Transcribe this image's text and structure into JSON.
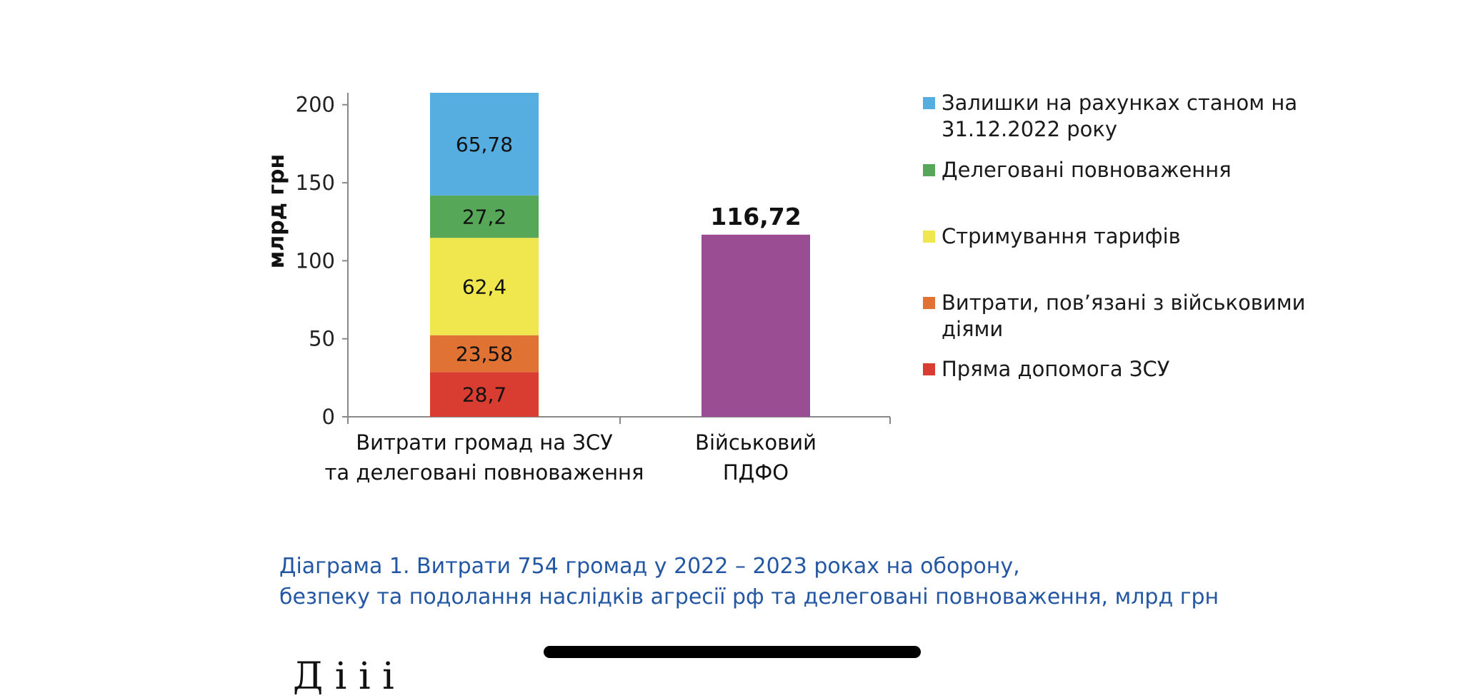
{
  "chart_data": {
    "type": "bar",
    "stacked": true,
    "categories": [
      "Витрати громад на ЗСУ\nта делеговані повноваження",
      "Військовий\nПДФО"
    ],
    "series": [
      {
        "name": "Пряма допомога ЗСУ",
        "color": "#d93c30",
        "values": [
          28.7,
          null
        ]
      },
      {
        "name": "Витрати, пов’язані з військовими діями",
        "color": "#e07233",
        "values": [
          23.58,
          null
        ]
      },
      {
        "name": "Стримування тарифів",
        "color": "#f0e64e",
        "values": [
          62.4,
          null
        ]
      },
      {
        "name": "Делеговані повноваження",
        "color": "#56a858",
        "values": [
          27.2,
          null
        ]
      },
      {
        "name": "Залишки на рахунках станом на 31.12.2022 року",
        "color": "#56ade0",
        "values": [
          65.78,
          null
        ]
      },
      {
        "name": "",
        "color": "#9a4d92",
        "values": [
          null,
          116.72
        ]
      }
    ],
    "data_labels": [
      [
        "28,7",
        "23,58",
        "62,4",
        "27,2",
        "65,78"
      ],
      [
        "116,72"
      ]
    ],
    "ylabel": "млрд грн",
    "yticks": [
      0,
      50,
      100,
      150,
      200
    ],
    "ylim": [
      0,
      207.66
    ],
    "grid": false,
    "legend_position": "right",
    "legend_order": [
      "Залишки на рахунках станом на 31.12.2022 року",
      "Делеговані повноваження",
      "Стримування тарифів",
      "Витрати, пов’язані з військовими діями",
      "Пряма допомога ЗСУ"
    ]
  },
  "legend": {
    "items": [
      {
        "label": "Залишки на рахунках станом на 31.12.2022 року",
        "color": "#56ade0"
      },
      {
        "label": "Делеговані повноваження",
        "color": "#56a858"
      },
      {
        "label": "Стримування тарифів",
        "color": "#f0e64e"
      },
      {
        "label": "Витрати, пов’язані з військовими діями",
        "color": "#e07233"
      },
      {
        "label": "Пряма допомога ЗСУ",
        "color": "#d93c30"
      }
    ]
  },
  "caption": {
    "line1": "Діаграма 1.  Витрати 754 громад у 2022 – 2023 роках на оборону,",
    "line2": "безпеку та подолання наслідків агресії рф та делеговані повноваження, млрд грн"
  },
  "cut_text": "Д              і       і           і",
  "colors": {
    "caption": "#2457a3",
    "axis": "#888888"
  }
}
